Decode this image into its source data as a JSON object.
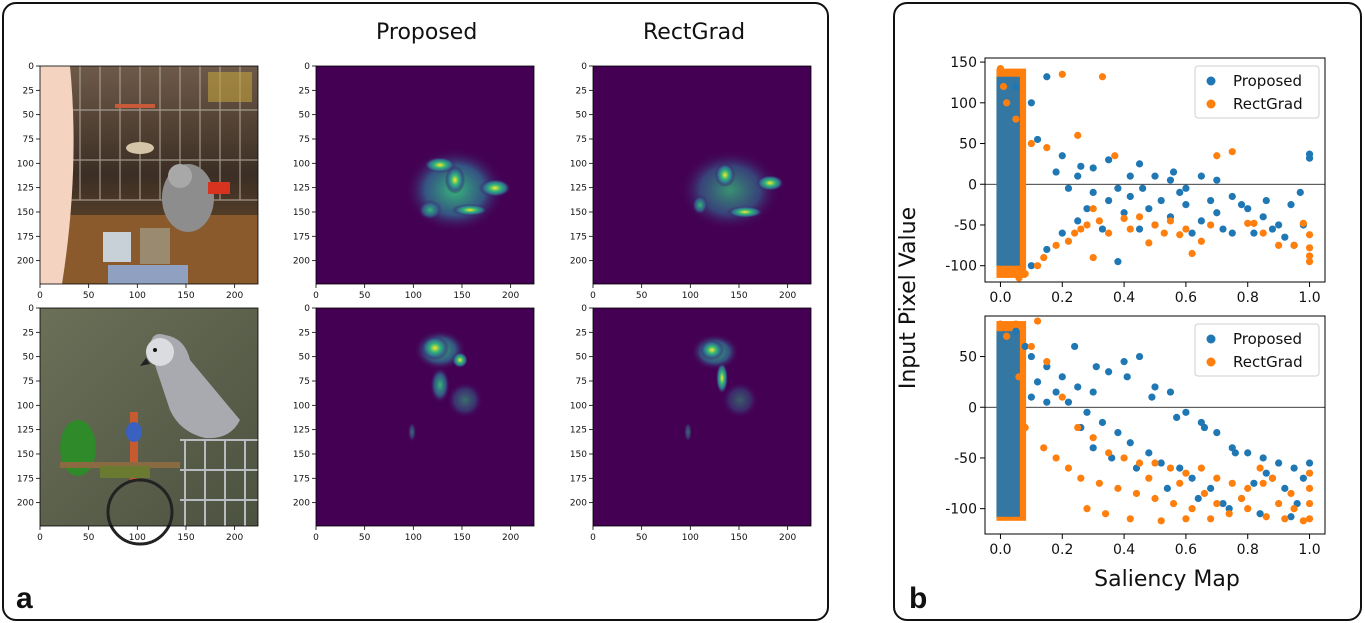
{
  "panel_a": {
    "letter": "a",
    "column_titles": [
      "Proposed",
      "RectGrad"
    ],
    "rows": [
      {
        "subject": "parrot in cage",
        "images": [
          "input photo",
          "Proposed saliency heatmap",
          "RectGrad saliency heatmap"
        ]
      },
      {
        "subject": "parrot on perch",
        "images": [
          "input photo",
          "Proposed saliency heatmap",
          "RectGrad saliency heatmap"
        ]
      }
    ],
    "xticks": [
      0,
      50,
      100,
      150,
      200
    ],
    "yticks": [
      0,
      25,
      50,
      75,
      100,
      125,
      150,
      175,
      200
    ],
    "heatmap_colors": {
      "background": "#440154",
      "low": "#31688e",
      "mid": "#35b779",
      "high": "#fde725"
    }
  },
  "panel_b": {
    "letter": "b",
    "ylabel": "Input Pixel Value",
    "xlabel": "Saliency Map",
    "legend": [
      "Proposed",
      "RectGrad"
    ],
    "colors": {
      "proposed": "#1f77b4",
      "rectgrad": "#ff7f0e"
    }
  },
  "chart_data": [
    {
      "type": "scatter",
      "title": "",
      "xlabel": "",
      "ylabel": "Input Pixel Value",
      "xlim": [
        -0.05,
        1.05
      ],
      "ylim": [
        -120,
        155
      ],
      "xticks": [
        "0.0",
        "0.2",
        "0.4",
        "0.6",
        "0.8",
        "1.0"
      ],
      "yticks": [
        "-100",
        "-50",
        "0",
        "50",
        "100",
        "150"
      ],
      "legend_position": "top-right",
      "hline": 0,
      "series": [
        {
          "name": "Proposed",
          "color": "#1f77b4",
          "points": [
            [
              0.15,
              132
            ],
            [
              0.05,
              120
            ],
            [
              0.1,
              100
            ],
            [
              0.05,
              80
            ],
            [
              0.12,
              55
            ],
            [
              0.2,
              35
            ],
            [
              0.3,
              20
            ],
            [
              0.35,
              30
            ],
            [
              0.45,
              25
            ],
            [
              0.5,
              10
            ],
            [
              0.55,
              5
            ],
            [
              0.6,
              -5
            ],
            [
              0.65,
              10
            ],
            [
              0.7,
              5
            ],
            [
              0.75,
              -15
            ],
            [
              0.8,
              -30
            ],
            [
              0.85,
              -40
            ],
            [
              0.88,
              -55
            ],
            [
              0.9,
              -50
            ],
            [
              0.92,
              -65
            ],
            [
              0.95,
              -75
            ],
            [
              0.98,
              -50
            ],
            [
              1.0,
              37
            ],
            [
              1.0,
              32
            ],
            [
              0.97,
              -10
            ],
            [
              0.6,
              -25
            ],
            [
              0.55,
              -40
            ],
            [
              0.5,
              -50
            ],
            [
              0.45,
              -55
            ],
            [
              0.4,
              -35
            ],
            [
              0.35,
              -20
            ],
            [
              0.3,
              -10
            ],
            [
              0.25,
              -45
            ],
            [
              0.2,
              -60
            ],
            [
              0.15,
              -80
            ],
            [
              0.1,
              -100
            ],
            [
              0.38,
              -95
            ],
            [
              0.62,
              -60
            ],
            [
              0.7,
              -35
            ],
            [
              0.82,
              -60
            ],
            [
              0.75,
              -60
            ],
            [
              0.25,
              10
            ],
            [
              0.28,
              -30
            ],
            [
              0.33,
              -55
            ],
            [
              0.42,
              -15
            ],
            [
              0.48,
              -30
            ],
            [
              0.52,
              -20
            ],
            [
              0.58,
              -10
            ],
            [
              0.65,
              -45
            ],
            [
              0.72,
              -55
            ],
            [
              0.42,
              10
            ],
            [
              0.46,
              -5
            ],
            [
              0.26,
              22
            ],
            [
              0.18,
              15
            ],
            [
              0.22,
              -5
            ],
            [
              0.38,
              -5
            ],
            [
              0.56,
              15
            ],
            [
              0.68,
              -20
            ],
            [
              0.78,
              -25
            ],
            [
              0.86,
              -20
            ],
            [
              0.94,
              -25
            ]
          ]
        },
        {
          "name": "RectGrad",
          "color": "#ff7f0e",
          "points": [
            [
              0.0,
              142
            ],
            [
              0.01,
              120
            ],
            [
              0.02,
              100
            ],
            [
              0.05,
              80
            ],
            [
              0.1,
              50
            ],
            [
              0.15,
              45
            ],
            [
              0.2,
              135
            ],
            [
              0.25,
              60
            ],
            [
              0.33,
              132
            ],
            [
              0.37,
              35
            ],
            [
              0.45,
              -40
            ],
            [
              0.5,
              -50
            ],
            [
              0.55,
              -45
            ],
            [
              0.6,
              -55
            ],
            [
              0.65,
              -70
            ],
            [
              0.7,
              35
            ],
            [
              0.75,
              40
            ],
            [
              0.8,
              -48
            ],
            [
              0.82,
              -48
            ],
            [
              0.85,
              -60
            ],
            [
              0.9,
              -75
            ],
            [
              0.95,
              -75
            ],
            [
              1.0,
              -62
            ],
            [
              1.0,
              -78
            ],
            [
              1.0,
              -88
            ],
            [
              1.0,
              -95
            ],
            [
              0.98,
              -48
            ],
            [
              0.62,
              -85
            ],
            [
              0.53,
              -60
            ],
            [
              0.4,
              -42
            ],
            [
              0.35,
              -60
            ],
            [
              0.28,
              -50
            ],
            [
              0.22,
              -70
            ],
            [
              0.18,
              -75
            ],
            [
              0.12,
              -100
            ],
            [
              0.08,
              -110
            ],
            [
              0.06,
              -115
            ],
            [
              0.14,
              -90
            ],
            [
              0.3,
              -90
            ],
            [
              0.42,
              -55
            ],
            [
              0.48,
              -72
            ],
            [
              0.58,
              -62
            ],
            [
              0.68,
              -50
            ],
            [
              0.24,
              -60
            ],
            [
              0.26,
              -55
            ],
            [
              0.3,
              -30
            ],
            [
              0.32,
              -45
            ]
          ]
        }
      ]
    },
    {
      "type": "scatter",
      "title": "",
      "xlabel": "Saliency Map",
      "ylabel": "Input Pixel Value",
      "xlim": [
        -0.05,
        1.05
      ],
      "ylim": [
        -125,
        90
      ],
      "xticks": [
        "0.0",
        "0.2",
        "0.4",
        "0.6",
        "0.8",
        "1.0"
      ],
      "yticks": [
        "-100",
        "-50",
        "0",
        "50"
      ],
      "legend_position": "top-right",
      "hline": 0,
      "series": [
        {
          "name": "Proposed",
          "color": "#1f77b4",
          "points": [
            [
              0.05,
              75
            ],
            [
              0.08,
              60
            ],
            [
              0.1,
              50
            ],
            [
              0.15,
              40
            ],
            [
              0.2,
              30
            ],
            [
              0.25,
              20
            ],
            [
              0.3,
              15
            ],
            [
              0.35,
              35
            ],
            [
              0.4,
              45
            ],
            [
              0.45,
              50
            ],
            [
              0.5,
              20
            ],
            [
              0.55,
              15
            ],
            [
              0.6,
              -5
            ],
            [
              0.65,
              -15
            ],
            [
              0.7,
              -25
            ],
            [
              0.75,
              -40
            ],
            [
              0.8,
              -45
            ],
            [
              0.85,
              -50
            ],
            [
              0.9,
              -55
            ],
            [
              0.95,
              -60
            ],
            [
              1.0,
              -55
            ],
            [
              0.98,
              -70
            ],
            [
              0.92,
              -80
            ],
            [
              0.88,
              -70
            ],
            [
              0.82,
              -75
            ],
            [
              0.78,
              -90
            ],
            [
              0.72,
              -95
            ],
            [
              0.68,
              -80
            ],
            [
              0.62,
              -70
            ],
            [
              0.58,
              -60
            ],
            [
              0.52,
              -55
            ],
            [
              0.48,
              -45
            ],
            [
              0.42,
              -35
            ],
            [
              0.38,
              -25
            ],
            [
              0.33,
              -15
            ],
            [
              0.28,
              -5
            ],
            [
              0.22,
              5
            ],
            [
              0.18,
              15
            ],
            [
              0.12,
              25
            ],
            [
              0.1,
              10
            ],
            [
              0.15,
              5
            ],
            [
              0.26,
              -20
            ],
            [
              0.3,
              -40
            ],
            [
              0.36,
              -50
            ],
            [
              0.44,
              -60
            ],
            [
              0.54,
              -80
            ],
            [
              0.64,
              -90
            ],
            [
              0.74,
              -100
            ],
            [
              0.84,
              -105
            ],
            [
              0.94,
              -108
            ],
            [
              0.24,
              60
            ],
            [
              0.31,
              40
            ],
            [
              0.41,
              30
            ],
            [
              0.49,
              10
            ],
            [
              0.57,
              -10
            ],
            [
              0.66,
              -20
            ],
            [
              0.76,
              -45
            ],
            [
              0.86,
              -65
            ],
            [
              0.96,
              -95
            ]
          ]
        },
        {
          "name": "RectGrad",
          "color": "#ff7f0e",
          "points": [
            [
              0.0,
              82
            ],
            [
              0.02,
              70
            ],
            [
              0.05,
              82
            ],
            [
              0.1,
              60
            ],
            [
              0.12,
              85
            ],
            [
              0.15,
              45
            ],
            [
              0.2,
              10
            ],
            [
              0.25,
              -20
            ],
            [
              0.3,
              -30
            ],
            [
              0.35,
              -45
            ],
            [
              0.4,
              -50
            ],
            [
              0.45,
              -55
            ],
            [
              0.5,
              -55
            ],
            [
              0.55,
              -60
            ],
            [
              0.6,
              -65
            ],
            [
              0.65,
              -60
            ],
            [
              0.7,
              -70
            ],
            [
              0.75,
              -75
            ],
            [
              0.8,
              -80
            ],
            [
              0.85,
              -75
            ],
            [
              0.9,
              -95
            ],
            [
              0.95,
              -100
            ],
            [
              1.0,
              -110
            ],
            [
              1.0,
              -95
            ],
            [
              1.0,
              -80
            ],
            [
              1.0,
              -65
            ],
            [
              0.98,
              -112
            ],
            [
              0.92,
              -110
            ],
            [
              0.86,
              -108
            ],
            [
              0.8,
              -100
            ],
            [
              0.74,
              -105
            ],
            [
              0.68,
              -110
            ],
            [
              0.62,
              -100
            ],
            [
              0.56,
              -95
            ],
            [
              0.5,
              -90
            ],
            [
              0.44,
              -85
            ],
            [
              0.38,
              -80
            ],
            [
              0.32,
              -75
            ],
            [
              0.26,
              -70
            ],
            [
              0.22,
              -60
            ],
            [
              0.18,
              -50
            ],
            [
              0.14,
              -40
            ],
            [
              0.08,
              -20
            ],
            [
              0.06,
              30
            ],
            [
              0.28,
              -100
            ],
            [
              0.34,
              -105
            ],
            [
              0.42,
              -110
            ],
            [
              0.52,
              -112
            ],
            [
              0.6,
              -110
            ],
            [
              0.7,
              -95
            ],
            [
              0.78,
              -90
            ],
            [
              0.84,
              -60
            ],
            [
              0.88,
              -70
            ],
            [
              0.94,
              -85
            ],
            [
              0.48,
              -70
            ],
            [
              0.58,
              -75
            ],
            [
              0.66,
              -85
            ]
          ]
        }
      ]
    }
  ]
}
